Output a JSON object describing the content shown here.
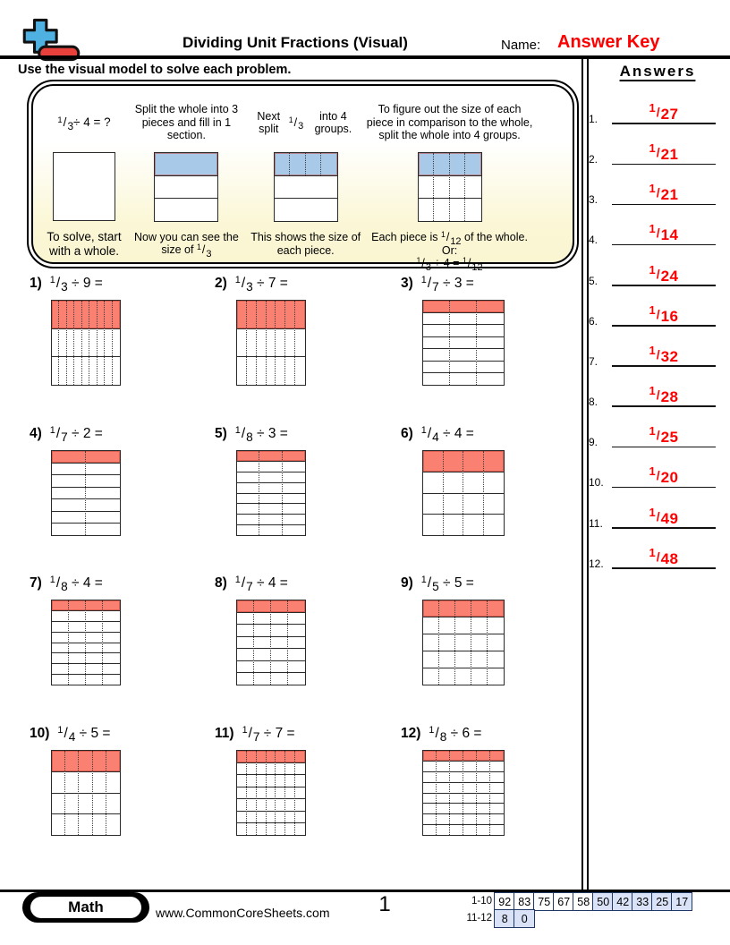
{
  "header": {
    "title": "Dividing Unit Fractions (Visual)",
    "name_label": "Name:",
    "answer_key_label": "Answer Key",
    "logo": {
      "icon": "plus-minus-logo",
      "plus_color": "#4FB0E2",
      "minus_color": "#E8403A"
    }
  },
  "instruction": "Use the visual model to solve each problem.",
  "example": {
    "columns": [
      {
        "top": [
          {
            "f": [
              "1",
              "3"
            ]
          },
          {
            "t": " ÷ 4 = ?"
          }
        ],
        "grid": {
          "rows": 1,
          "cols": 1,
          "filled_top": false,
          "dotted": "none"
        },
        "bottom": [
          {
            "t": "To solve, start with a whole."
          }
        ]
      },
      {
        "top": [
          {
            "t": "Split the whole into 3 pieces and fill in 1 section."
          }
        ],
        "grid": {
          "rows": 3,
          "cols": 1,
          "filled_top": true,
          "dotted": "none"
        },
        "bottom": [
          {
            "t": "Now you can see the size of "
          },
          {
            "f": [
              "1",
              "3"
            ]
          }
        ]
      },
      {
        "top": [
          {
            "t": "Next split "
          },
          {
            "f": [
              "1",
              "3"
            ]
          },
          {
            "t": " into 4 groups."
          }
        ],
        "grid": {
          "rows": 3,
          "cols": 4,
          "filled_top": true,
          "dotted": "top"
        },
        "bottom": [
          {
            "t": "This shows the size of each piece."
          }
        ]
      },
      {
        "top": [
          {
            "t": "To figure out the size of each piece in comparison to the whole, split the whole into 4 groups."
          }
        ],
        "grid": {
          "rows": 3,
          "cols": 4,
          "filled_top": true,
          "dotted": "all"
        },
        "bottom": [
          {
            "t": "Each piece is "
          },
          {
            "f": [
              "1",
              "12"
            ]
          },
          {
            "t": " of the whole."
          },
          {
            "br": true
          },
          {
            "t": "Or:"
          },
          {
            "br": true
          },
          {
            "f": [
              "1",
              "3"
            ]
          },
          {
            "t": " ÷ 4 = "
          },
          {
            "f": [
              "1",
              "12"
            ]
          }
        ]
      }
    ]
  },
  "problems": [
    {
      "n": "1)",
      "numerator": "1",
      "denominator": "3",
      "divisor": "9"
    },
    {
      "n": "2)",
      "numerator": "1",
      "denominator": "3",
      "divisor": "7"
    },
    {
      "n": "3)",
      "numerator": "1",
      "denominator": "7",
      "divisor": "3"
    },
    {
      "n": "4)",
      "numerator": "1",
      "denominator": "7",
      "divisor": "2"
    },
    {
      "n": "5)",
      "numerator": "1",
      "denominator": "8",
      "divisor": "3"
    },
    {
      "n": "6)",
      "numerator": "1",
      "denominator": "4",
      "divisor": "4"
    },
    {
      "n": "7)",
      "numerator": "1",
      "denominator": "8",
      "divisor": "4"
    },
    {
      "n": "8)",
      "numerator": "1",
      "denominator": "7",
      "divisor": "4"
    },
    {
      "n": "9)",
      "numerator": "1",
      "denominator": "5",
      "divisor": "5"
    },
    {
      "n": "10)",
      "numerator": "1",
      "denominator": "4",
      "divisor": "5"
    },
    {
      "n": "11)",
      "numerator": "1",
      "denominator": "7",
      "divisor": "7"
    },
    {
      "n": "12)",
      "numerator": "1",
      "denominator": "8",
      "divisor": "6"
    }
  ],
  "answers_panel": {
    "heading": "Answers",
    "items": [
      {
        "n": "1.",
        "numerator": "1",
        "denominator": "27"
      },
      {
        "n": "2.",
        "numerator": "1",
        "denominator": "21"
      },
      {
        "n": "3.",
        "numerator": "1",
        "denominator": "21"
      },
      {
        "n": "4.",
        "numerator": "1",
        "denominator": "14"
      },
      {
        "n": "5.",
        "numerator": "1",
        "denominator": "24"
      },
      {
        "n": "6.",
        "numerator": "1",
        "denominator": "16"
      },
      {
        "n": "7.",
        "numerator": "1",
        "denominator": "32"
      },
      {
        "n": "8.",
        "numerator": "1",
        "denominator": "28"
      },
      {
        "n": "9.",
        "numerator": "1",
        "denominator": "25"
      },
      {
        "n": "10.",
        "numerator": "1",
        "denominator": "20"
      },
      {
        "n": "11.",
        "numerator": "1",
        "denominator": "49"
      },
      {
        "n": "12.",
        "numerator": "1",
        "denominator": "48"
      }
    ]
  },
  "footer": {
    "brand": "Math",
    "url": "www.CommonCoreSheets.com",
    "page": "1",
    "score_table": [
      {
        "label": "1-10",
        "cells": [
          {
            "v": "92",
            "hl": false
          },
          {
            "v": "83",
            "hl": false
          },
          {
            "v": "75",
            "hl": false
          },
          {
            "v": "67",
            "hl": false
          },
          {
            "v": "58",
            "hl": false
          },
          {
            "v": "50",
            "hl": true
          },
          {
            "v": "42",
            "hl": true
          },
          {
            "v": "33",
            "hl": true
          },
          {
            "v": "25",
            "hl": true
          },
          {
            "v": "17",
            "hl": true
          }
        ]
      },
      {
        "label": "11-12",
        "cells": [
          {
            "v": "8",
            "hl": true
          },
          {
            "v": "0",
            "hl": true
          }
        ]
      }
    ]
  },
  "colors": {
    "problem_fill": "#FA8072",
    "example_fill": "#A9C9E8",
    "answer_red": "#FF0000",
    "score_highlight": "#D9E2F6"
  }
}
